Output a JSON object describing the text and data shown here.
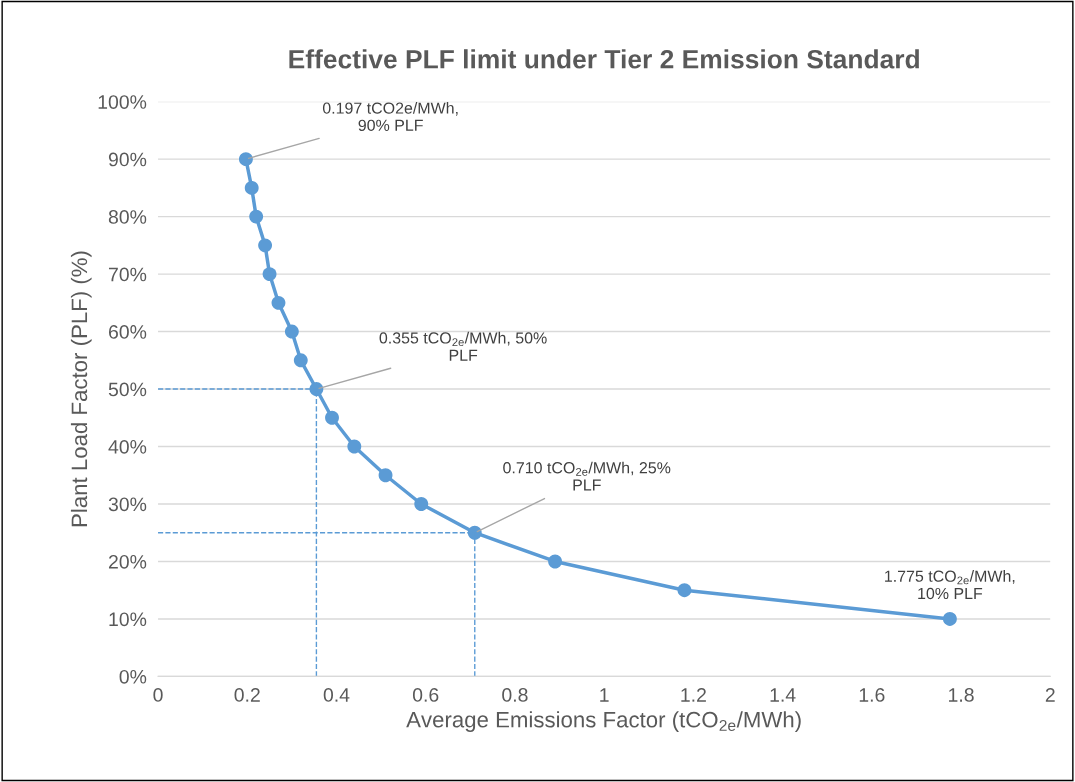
{
  "chart_data": {
    "type": "line",
    "title": "Effective PLF limit under Tier 2 Emission Standard",
    "xlabel": "Average Emissions Factor (tCO$_{2e}$/MWh)",
    "ylabel": "Plant Load Factor (PLF) (%)",
    "series": [
      {
        "color": "#5b9bd5",
        "x": [
          0.197,
          0.21,
          0.22,
          0.24,
          0.25,
          0.27,
          0.3,
          0.32,
          0.355,
          0.39,
          0.44,
          0.51,
          0.59,
          0.71,
          0.89,
          1.18,
          1.775
        ],
        "values": [
          90,
          85,
          80,
          75,
          70,
          65,
          60,
          55,
          50,
          45,
          40,
          35,
          30,
          25,
          20,
          15,
          10
        ]
      }
    ],
    "xlim": [
      0,
      2
    ],
    "xticks": [
      0,
      0.2,
      0.4,
      0.6,
      0.8,
      1,
      1.2,
      1.4,
      1.6,
      1.8,
      2
    ],
    "ylim": [
      0,
      100
    ],
    "yticks": [
      {
        "value": 0,
        "label": "0%"
      },
      {
        "value": 10,
        "label": "10%"
      },
      {
        "value": 20,
        "label": "20%"
      },
      {
        "value": 30,
        "label": "30%"
      },
      {
        "value": 40,
        "label": "40%"
      },
      {
        "value": 50,
        "label": "50%"
      },
      {
        "value": 60,
        "label": "60%"
      },
      {
        "value": 70,
        "label": "70%"
      },
      {
        "value": 80,
        "label": "80%"
      },
      {
        "value": 90,
        "label": "90%"
      },
      {
        "value": 100,
        "label": "100%"
      }
    ],
    "grid": "y",
    "marker": "circle",
    "line_style": "solid",
    "ref_lines": [
      {
        "axis": "x",
        "value": 0.355,
        "color": "#5b9bd5",
        "line_style": "dashed"
      },
      {
        "axis": "y",
        "value": 50,
        "color": "#5b9bd5",
        "line_style": "dashed"
      },
      {
        "axis": "x",
        "value": 0.71,
        "color": "#5b9bd5",
        "line_style": "dashed"
      },
      {
        "axis": "y",
        "value": 25,
        "color": "#5b9bd5",
        "line_style": "dashed"
      }
    ],
    "annotations": [
      {
        "text": "0.197 tCO2e/MWh,\n90% PLF",
        "x": 0.197,
        "y": 90
      },
      {
        "text": "0.355 tCO$_{2e}$/MWh, 50%\nPLF",
        "x": 0.355,
        "y": 50
      },
      {
        "text": "0.710 tCO$_{2e}$/MWh, 25%\nPLF",
        "x": 0.71,
        "y": 25
      },
      {
        "text": "1.775 tCO$_{2e}$/MWh,\n10% PLF",
        "x": 1.775,
        "y": 10
      }
    ]
  }
}
